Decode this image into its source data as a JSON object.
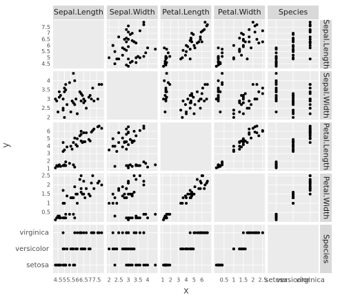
{
  "chart_data": {
    "type": "scatter-matrix",
    "xlabel": "x",
    "ylabel": "y",
    "variables": [
      {
        "name": "Sepal.Length",
        "xlim": [
          4.3,
          7.9
        ],
        "ticks": [
          4.5,
          5,
          5.5,
          6,
          6.5,
          7,
          7.5
        ],
        "values": [
          5.1,
          4.9,
          4.7,
          4.6,
          5.0,
          5.4,
          4.6,
          5.0,
          4.4,
          5.8,
          5.7,
          4.5,
          4.3,
          5.1,
          7.0,
          6.4,
          6.9,
          5.5,
          6.5,
          5.7,
          6.3,
          4.9,
          6.6,
          5.2,
          5.0,
          5.9,
          6.0,
          5.6,
          6.3,
          5.8,
          7.1,
          6.3,
          6.5,
          7.6,
          4.9,
          7.3,
          6.7,
          7.2,
          7.7,
          6.0,
          7.9,
          6.2
        ]
      },
      {
        "name": "Sepal.Width",
        "xlim": [
          2.0,
          4.4
        ],
        "ticks": [
          2,
          2.5,
          3,
          3.5,
          4
        ],
        "values": [
          3.5,
          3.0,
          3.2,
          3.1,
          3.6,
          3.9,
          3.4,
          3.4,
          2.9,
          4.0,
          4.4,
          2.3,
          3.0,
          3.8,
          3.2,
          3.2,
          3.1,
          2.3,
          2.8,
          2.8,
          3.3,
          2.4,
          2.9,
          2.7,
          2.0,
          3.0,
          2.2,
          2.9,
          3.3,
          2.7,
          3.0,
          2.9,
          3.0,
          3.0,
          2.5,
          2.9,
          2.5,
          3.6,
          3.8,
          2.2,
          3.8,
          3.4
        ]
      },
      {
        "name": "Petal.Length",
        "xlim": [
          1.0,
          6.9
        ],
        "ticks": [
          1,
          2,
          3,
          4,
          5,
          6
        ],
        "values": [
          1.4,
          1.4,
          1.3,
          1.5,
          1.4,
          1.7,
          1.4,
          1.5,
          1.4,
          1.2,
          1.5,
          1.3,
          1.1,
          1.9,
          4.7,
          4.5,
          4.9,
          4.0,
          4.6,
          4.5,
          4.7,
          3.3,
          4.6,
          3.9,
          3.5,
          4.2,
          4.0,
          3.6,
          6.0,
          5.1,
          5.9,
          5.6,
          5.8,
          6.6,
          4.5,
          6.3,
          5.8,
          6.1,
          6.7,
          5.0,
          6.4,
          5.4
        ]
      },
      {
        "name": "Petal.Width",
        "xlim": [
          0.1,
          2.5
        ],
        "ticks": [
          0.5,
          1,
          1.5,
          2,
          2.5
        ],
        "values": [
          0.2,
          0.2,
          0.2,
          0.2,
          0.2,
          0.4,
          0.3,
          0.2,
          0.2,
          0.2,
          0.4,
          0.3,
          0.1,
          0.4,
          1.4,
          1.5,
          1.5,
          1.3,
          1.5,
          1.3,
          1.6,
          1.0,
          1.3,
          1.4,
          1.0,
          1.5,
          1.0,
          1.3,
          2.5,
          1.9,
          2.1,
          1.8,
          2.2,
          2.1,
          1.7,
          1.8,
          1.8,
          2.5,
          2.2,
          1.5,
          2.0,
          2.3
        ]
      },
      {
        "name": "Species",
        "levels": [
          "setosa",
          "versicolor",
          "virginica"
        ],
        "values": [
          "setosa",
          "setosa",
          "setosa",
          "setosa",
          "setosa",
          "setosa",
          "setosa",
          "setosa",
          "setosa",
          "setosa",
          "setosa",
          "setosa",
          "setosa",
          "setosa",
          "versicolor",
          "versicolor",
          "versicolor",
          "versicolor",
          "versicolor",
          "versicolor",
          "versicolor",
          "versicolor",
          "versicolor",
          "versicolor",
          "versicolor",
          "versicolor",
          "versicolor",
          "versicolor",
          "virginica",
          "virginica",
          "virginica",
          "virginica",
          "virginica",
          "virginica",
          "virginica",
          "virginica",
          "virginica",
          "virginica",
          "virginica",
          "virginica",
          "virginica",
          "virginica"
        ]
      }
    ]
  }
}
